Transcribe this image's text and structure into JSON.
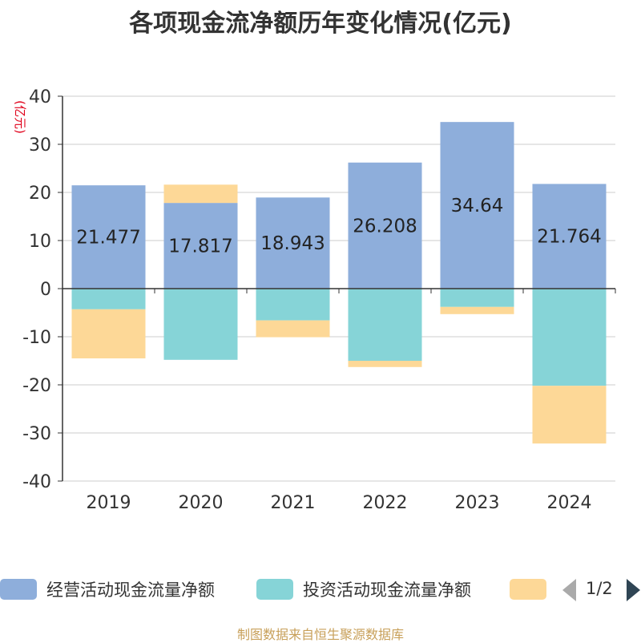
{
  "chart_data": {
    "type": "bar",
    "stacked": true,
    "title": "各项现金流净额历年变化情况(亿元)",
    "ylabel": "(亿元)",
    "ylim": [
      -40,
      40
    ],
    "yticks": [
      40,
      30,
      20,
      10,
      0,
      -10,
      -20,
      -30,
      -40
    ],
    "grid": true,
    "categories": [
      "2019",
      "2020",
      "2021",
      "2022",
      "2023",
      "2024"
    ],
    "series": [
      {
        "name": "经营活动现金流量净额",
        "color": "#8eaedb",
        "values": [
          21.477,
          17.817,
          18.943,
          26.208,
          34.64,
          21.764
        ],
        "data_labels": [
          "21.477",
          "17.817",
          "18.943",
          "26.208",
          "34.64",
          "21.764"
        ]
      },
      {
        "name": "投资活动现金流量净额",
        "color": "#86d4d7",
        "values": [
          -4.3,
          -14.8,
          -6.6,
          -15.0,
          -3.8,
          -20.2
        ]
      },
      {
        "name": "",
        "color": "#fdd897",
        "values": [
          -10.2,
          3.8,
          -3.5,
          -1.3,
          -1.5,
          -12.0
        ]
      }
    ],
    "legend": {
      "position": "bottom",
      "page": "1/2"
    }
  },
  "source": "制图数据来自恒生聚源数据库"
}
